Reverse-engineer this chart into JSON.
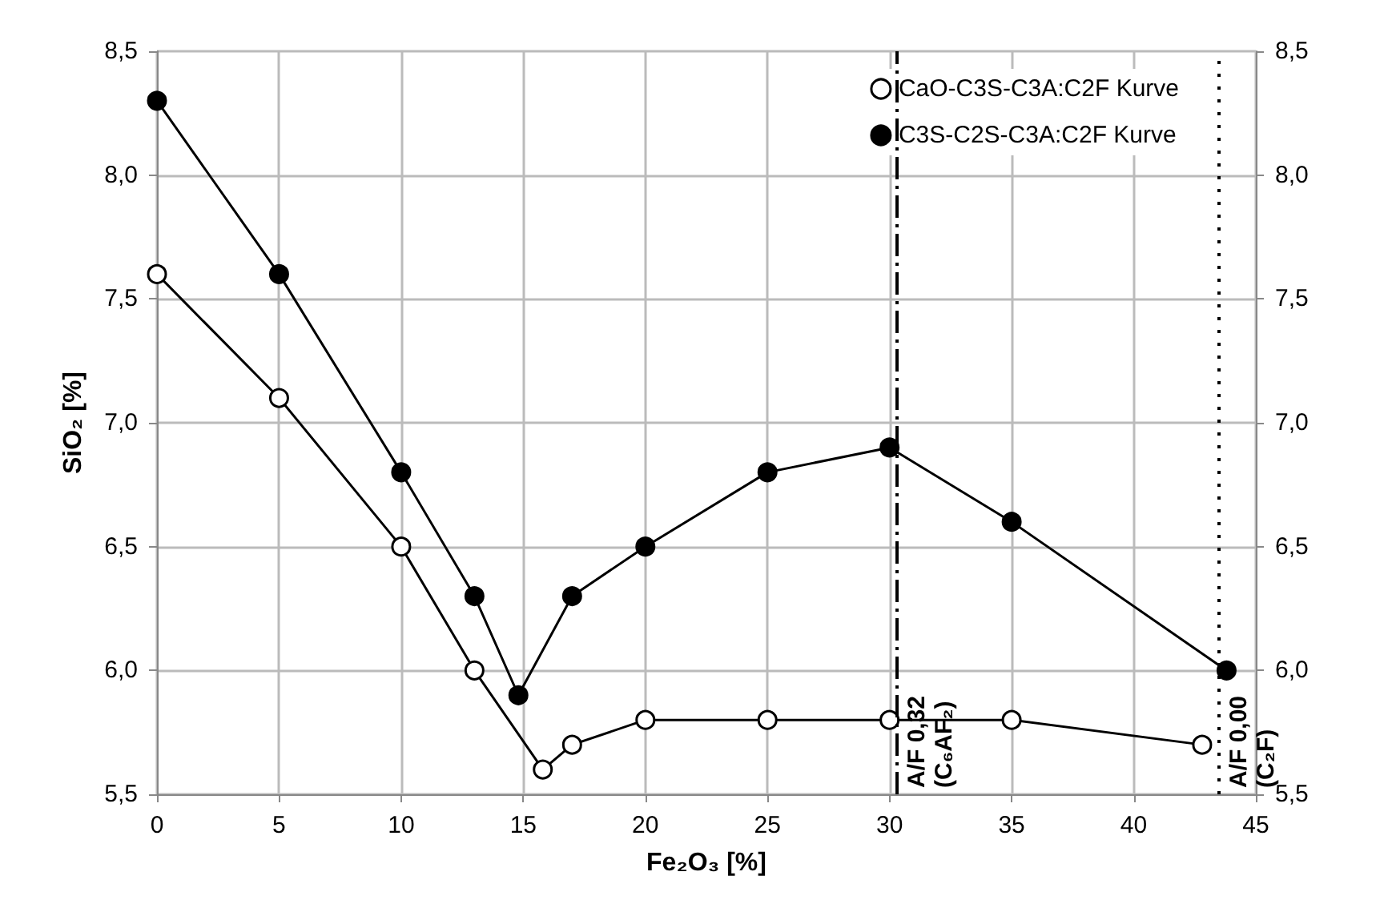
{
  "chart_data": {
    "type": "line",
    "xlabel": "Fe₂O₃ [%]",
    "ylabel": "SiO₂ [%]",
    "xlim": [
      0,
      45
    ],
    "xticks": [
      0,
      5,
      10,
      15,
      20,
      25,
      30,
      35,
      40,
      45
    ],
    "ylim": [
      5.5,
      8.5
    ],
    "yticks": [
      {
        "value": 5.5,
        "label": "5,5"
      },
      {
        "value": 6.0,
        "label": "6,0"
      },
      {
        "value": 6.5,
        "label": "6,5"
      },
      {
        "value": 7.0,
        "label": "7,0"
      },
      {
        "value": 7.5,
        "label": "7,5"
      },
      {
        "value": 8.0,
        "label": "8,0"
      },
      {
        "value": 8.5,
        "label": "8,5"
      }
    ],
    "y2lim": [
      5.5,
      8.5
    ],
    "y2ticks": [
      {
        "value": 5.5,
        "label": "5,5"
      },
      {
        "value": 6.0,
        "label": "6,0"
      },
      {
        "value": 6.5,
        "label": "6,5"
      },
      {
        "value": 7.0,
        "label": "7,0"
      },
      {
        "value": 7.5,
        "label": "7,5"
      },
      {
        "value": 8.0,
        "label": "8,0"
      },
      {
        "value": 8.5,
        "label": "8,5"
      }
    ],
    "grid": true,
    "legend": "top right",
    "series": [
      {
        "name": "CaO-C3S-C3A:C2F Kurve",
        "color": "#000000",
        "marker": "open circle",
        "x": [
          0,
          5,
          10,
          13,
          15.8,
          17,
          20,
          25,
          30,
          35,
          42.8
        ],
        "values": [
          7.6,
          7.1,
          6.5,
          6.0,
          5.6,
          5.7,
          5.8,
          5.8,
          5.8,
          5.8,
          5.7
        ]
      },
      {
        "name": "C3S-C2S-C3A:C2F Kurve",
        "color": "#000000",
        "marker": "circle",
        "x": [
          0,
          5,
          10,
          13,
          14.8,
          17,
          20,
          25,
          30,
          35,
          43.8
        ],
        "values": [
          8.3,
          7.6,
          6.8,
          6.3,
          5.9,
          6.3,
          6.5,
          6.8,
          6.9,
          6.6,
          6.0
        ]
      }
    ],
    "ref_lines": [
      {
        "axis": "x",
        "value": 30.3,
        "label": "A/F 0,32\n(C₆AF₂)",
        "line_style": "dashed"
      },
      {
        "axis": "x",
        "value": 43.5,
        "label": "A/F 0,00\n(C₂F)",
        "line_style": "dotted"
      }
    ]
  }
}
